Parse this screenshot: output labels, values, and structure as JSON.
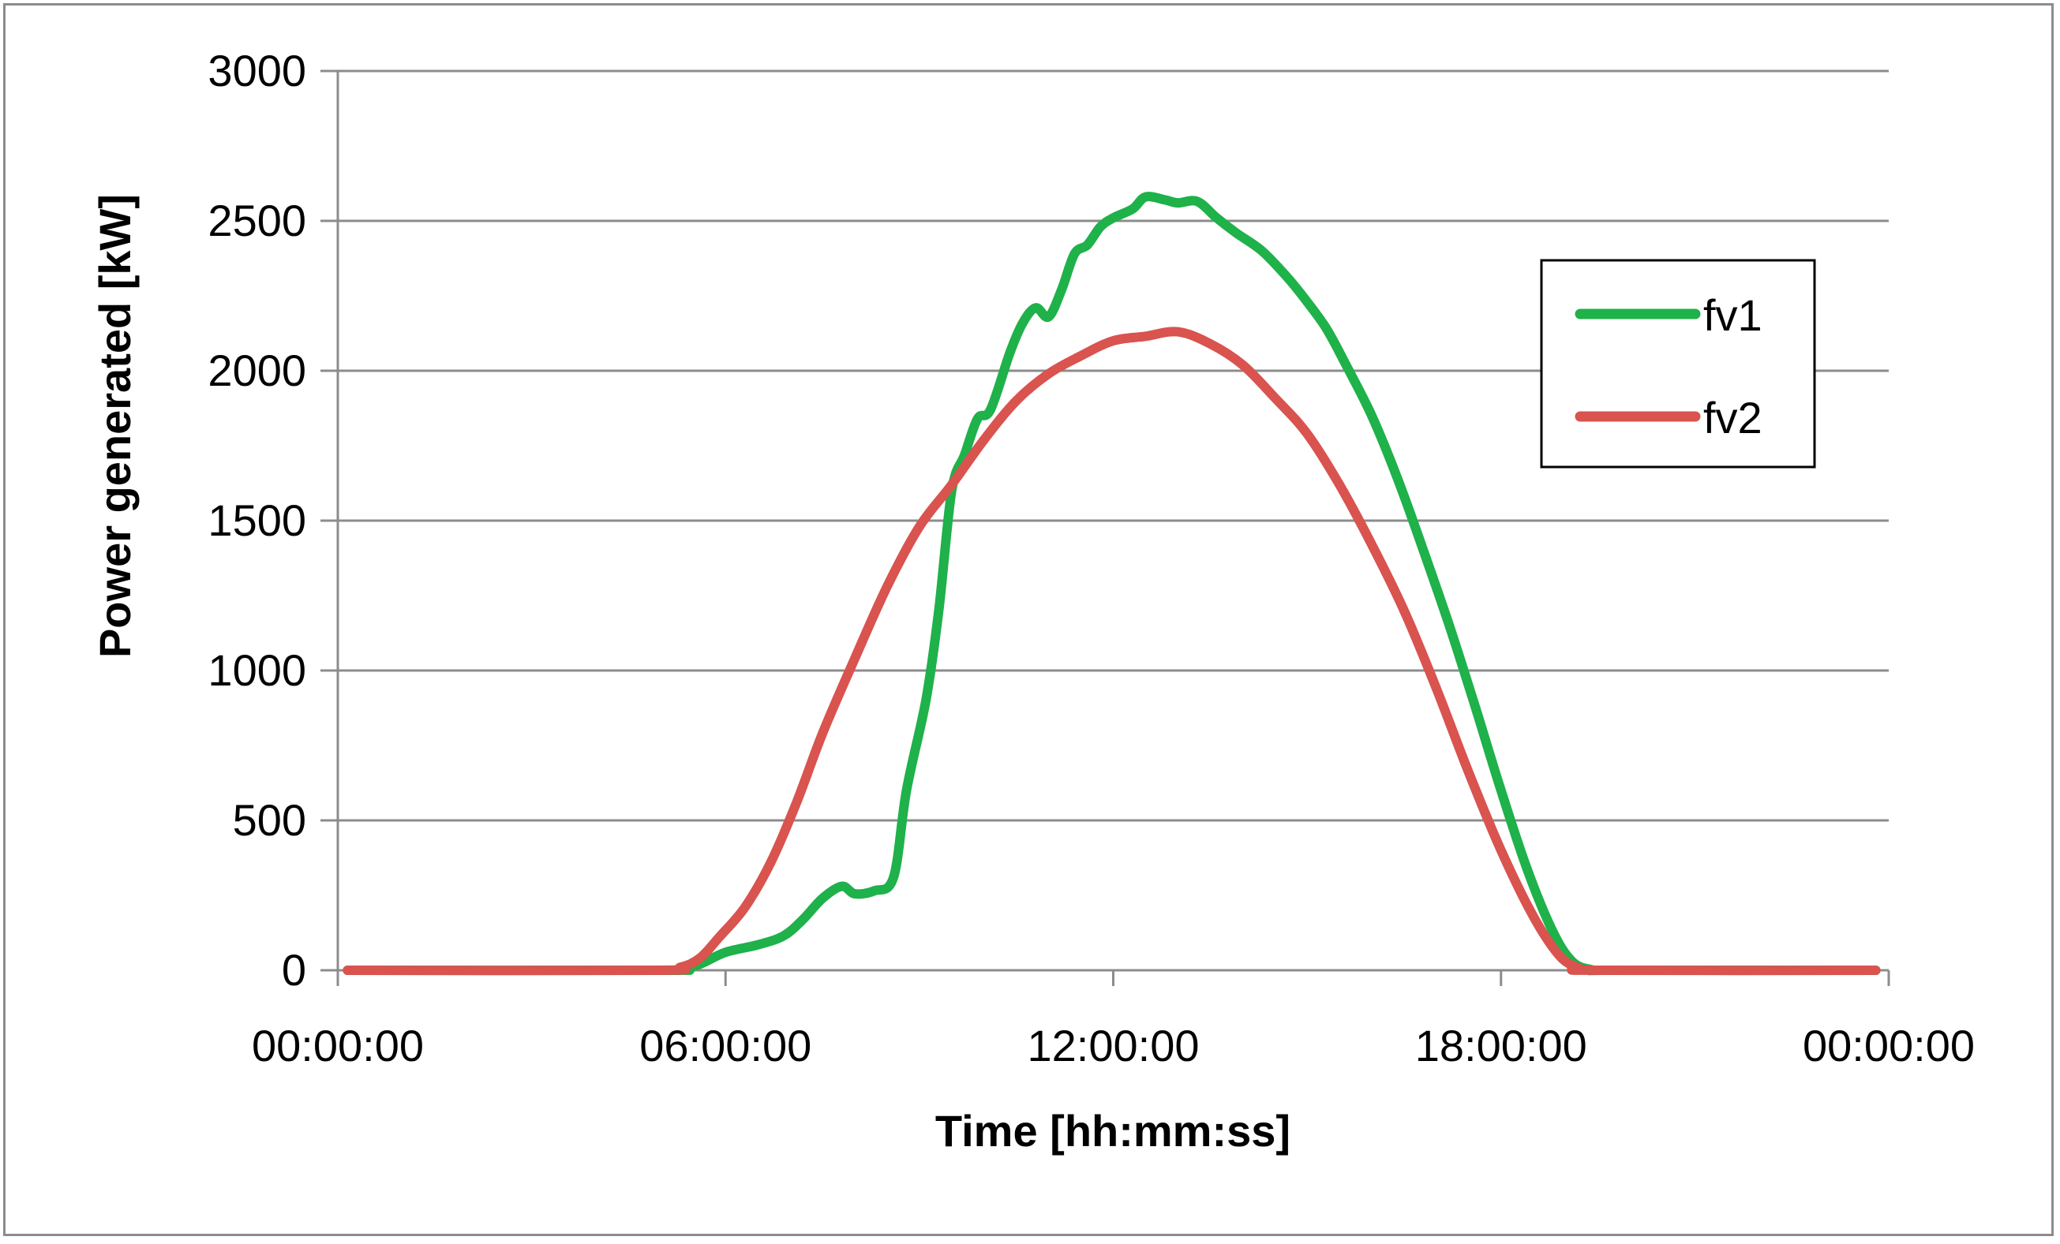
{
  "chart_data": {
    "type": "line",
    "title": "",
    "xlabel": "Time [hh:mm:ss]",
    "ylabel": "Power generated [kW]",
    "x_unit": "hours",
    "xlim": [
      0,
      24
    ],
    "ylim": [
      0,
      3000
    ],
    "x_ticks": [
      {
        "value": 0,
        "label": "00:00:00"
      },
      {
        "value": 6,
        "label": "06:00:00"
      },
      {
        "value": 12,
        "label": "12:00:00"
      },
      {
        "value": 18,
        "label": "18:00:00"
      },
      {
        "value": 24,
        "label": "00:00:00"
      }
    ],
    "y_ticks": [
      0,
      500,
      1000,
      1500,
      2000,
      2500,
      3000
    ],
    "grid": {
      "horizontal": true,
      "vertical": false
    },
    "legend": {
      "position": "right"
    },
    "series": [
      {
        "name": "fv1",
        "color": "#1fb14a",
        "points": [
          [
            0.15,
            0
          ],
          [
            5.0,
            0
          ],
          [
            5.3,
            3
          ],
          [
            5.6,
            20
          ],
          [
            6.0,
            60
          ],
          [
            6.5,
            85
          ],
          [
            6.9,
            115
          ],
          [
            7.2,
            170
          ],
          [
            7.5,
            240
          ],
          [
            7.8,
            280
          ],
          [
            8.0,
            255
          ],
          [
            8.3,
            265
          ],
          [
            8.6,
            310
          ],
          [
            8.8,
            600
          ],
          [
            9.1,
            900
          ],
          [
            9.3,
            1200
          ],
          [
            9.5,
            1600
          ],
          [
            9.7,
            1720
          ],
          [
            9.9,
            1840
          ],
          [
            10.1,
            1870
          ],
          [
            10.4,
            2060
          ],
          [
            10.6,
            2160
          ],
          [
            10.8,
            2210
          ],
          [
            11.0,
            2180
          ],
          [
            11.2,
            2270
          ],
          [
            11.4,
            2390
          ],
          [
            11.6,
            2420
          ],
          [
            11.8,
            2480
          ],
          [
            12.0,
            2510
          ],
          [
            12.3,
            2540
          ],
          [
            12.5,
            2580
          ],
          [
            12.8,
            2570
          ],
          [
            13.0,
            2560
          ],
          [
            13.3,
            2565
          ],
          [
            13.6,
            2510
          ],
          [
            13.9,
            2460
          ],
          [
            14.3,
            2400
          ],
          [
            14.7,
            2310
          ],
          [
            15.0,
            2230
          ],
          [
            15.3,
            2140
          ],
          [
            15.6,
            2020
          ],
          [
            16.0,
            1850
          ],
          [
            16.4,
            1640
          ],
          [
            16.8,
            1400
          ],
          [
            17.2,
            1150
          ],
          [
            17.6,
            880
          ],
          [
            18.0,
            600
          ],
          [
            18.4,
            340
          ],
          [
            18.8,
            130
          ],
          [
            19.1,
            30
          ],
          [
            19.4,
            2
          ],
          [
            19.8,
            0
          ],
          [
            23.8,
            0
          ]
        ]
      },
      {
        "name": "fv2",
        "color": "#d9534f",
        "points": [
          [
            0.15,
            0
          ],
          [
            4.9,
            0
          ],
          [
            5.3,
            10
          ],
          [
            5.6,
            40
          ],
          [
            5.9,
            110
          ],
          [
            6.3,
            210
          ],
          [
            6.7,
            360
          ],
          [
            7.1,
            560
          ],
          [
            7.5,
            790
          ],
          [
            8.0,
            1040
          ],
          [
            8.5,
            1280
          ],
          [
            9.0,
            1480
          ],
          [
            9.5,
            1620
          ],
          [
            10.0,
            1770
          ],
          [
            10.5,
            1900
          ],
          [
            11.0,
            1990
          ],
          [
            11.5,
            2050
          ],
          [
            12.0,
            2100
          ],
          [
            12.5,
            2115
          ],
          [
            13.0,
            2130
          ],
          [
            13.5,
            2090
          ],
          [
            14.0,
            2020
          ],
          [
            14.5,
            1910
          ],
          [
            15.0,
            1790
          ],
          [
            15.5,
            1620
          ],
          [
            16.0,
            1420
          ],
          [
            16.5,
            1200
          ],
          [
            17.0,
            940
          ],
          [
            17.5,
            660
          ],
          [
            18.0,
            400
          ],
          [
            18.5,
            180
          ],
          [
            18.9,
            50
          ],
          [
            19.2,
            8
          ],
          [
            19.5,
            0
          ],
          [
            23.8,
            0
          ]
        ]
      }
    ]
  }
}
